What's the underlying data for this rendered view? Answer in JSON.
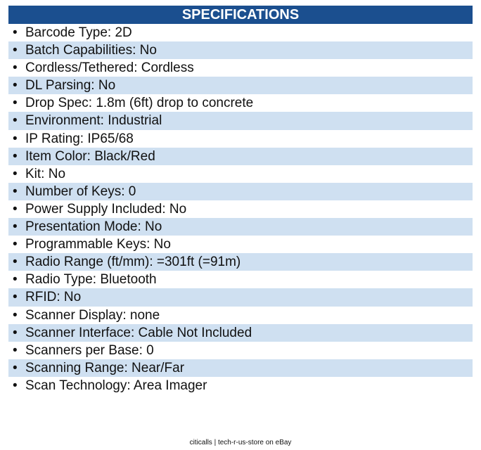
{
  "header": {
    "title": "SPECIFICATIONS"
  },
  "items": [
    "Barcode Type: 2D",
    "Batch Capabilities: No",
    "Cordless/Tethered: Cordless",
    "DL Parsing: No",
    "Drop Spec: 1.8m (6ft) drop to concrete",
    "Environment: Industrial",
    "IP Rating: IP65/68",
    "Item Color: Black/Red",
    "Kit: No",
    "Number of Keys: 0",
    "Power Supply Included: No",
    "Presentation Mode: No",
    "Programmable Keys: No",
    "Radio Range (ft/mm): =301ft (=91m)",
    "Radio Type: Bluetooth",
    "RFID: No",
    "Scanner Display: none",
    "Scanner Interface: Cable Not Included",
    "Scanners per Base: 0",
    "Scanning Range: Near/Far",
    "Scan Technology: Area Imager"
  ],
  "footer": "citicalls | tech-r-us-store on eBay"
}
